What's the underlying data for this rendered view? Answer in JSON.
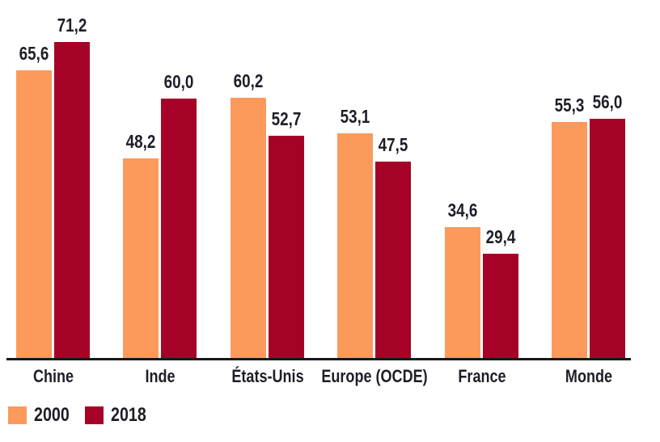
{
  "chart_data": {
    "type": "bar",
    "title": "",
    "xlabel": "",
    "ylabel": "",
    "grid": false,
    "legend_position": "bottom-left",
    "decimal_separator": "comma",
    "axis_color": "#17171c",
    "text_color": "#1e1e28",
    "categories": [
      "Chine",
      "Inde",
      "États-Unis",
      "Europe (OCDE)",
      "France",
      "Monde"
    ],
    "series": [
      {
        "name": "2000",
        "color": "#FC9A5C",
        "values": [
          65.6,
          48.2,
          60.2,
          53.1,
          34.6,
          55.3
        ],
        "value_labels": [
          "65,6",
          "48,2",
          "60,2",
          "53,1",
          "34,6",
          "55,3"
        ]
      },
      {
        "name": "2018",
        "color": "#A60227",
        "values": [
          71.2,
          60.0,
          52.7,
          47.5,
          29.4,
          56.0
        ],
        "value_labels": [
          "71,2",
          "60,0",
          "52,7",
          "47,5",
          "29,4",
          "56,0"
        ]
      }
    ]
  }
}
